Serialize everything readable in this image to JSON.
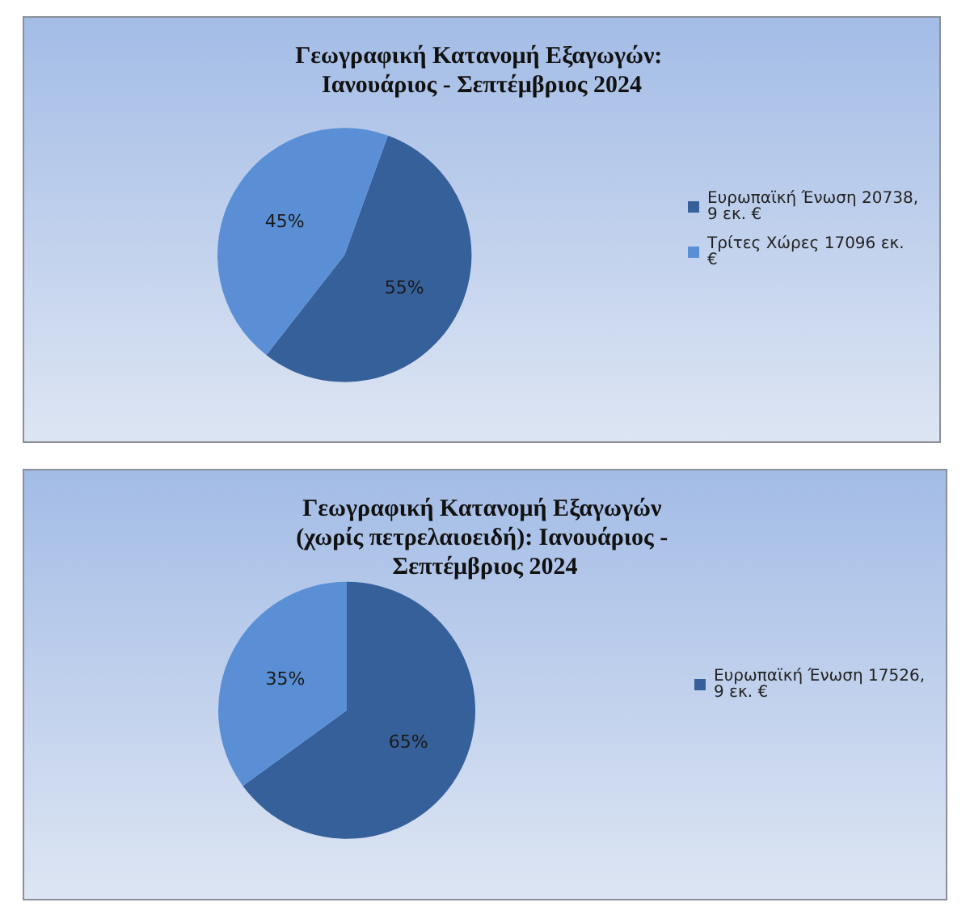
{
  "chart_data": [
    {
      "type": "pie",
      "title": "Γεωγραφική Κατανομή Εξαγωγών: Ιανουάριος - Σεπτέμβριος 2024",
      "categories": [
        "Ευρωπαϊκή Ένωση 20738,9 εκ. €",
        "Τρίτες Χώρες 17096 εκ.€"
      ],
      "values": [
        55,
        45
      ],
      "value_labels": [
        "55%",
        "45%"
      ],
      "colors": [
        "#36609a",
        "#5a8fd6"
      ],
      "legend": "right"
    },
    {
      "type": "pie",
      "title": "Γεωγραφική Κατανομή Εξαγωγών (χωρίς πετρελαιοειδή): Ιανουάριος - Σεπτέμβριος 2024",
      "categories": [
        "Ευρωπαϊκή Ένωση 17526,9 εκ. €",
        null
      ],
      "values": [
        65,
        35
      ],
      "value_labels": [
        "65%",
        "35%"
      ],
      "colors": [
        "#36609a",
        "#5a8fd6"
      ],
      "legend": "right"
    }
  ]
}
